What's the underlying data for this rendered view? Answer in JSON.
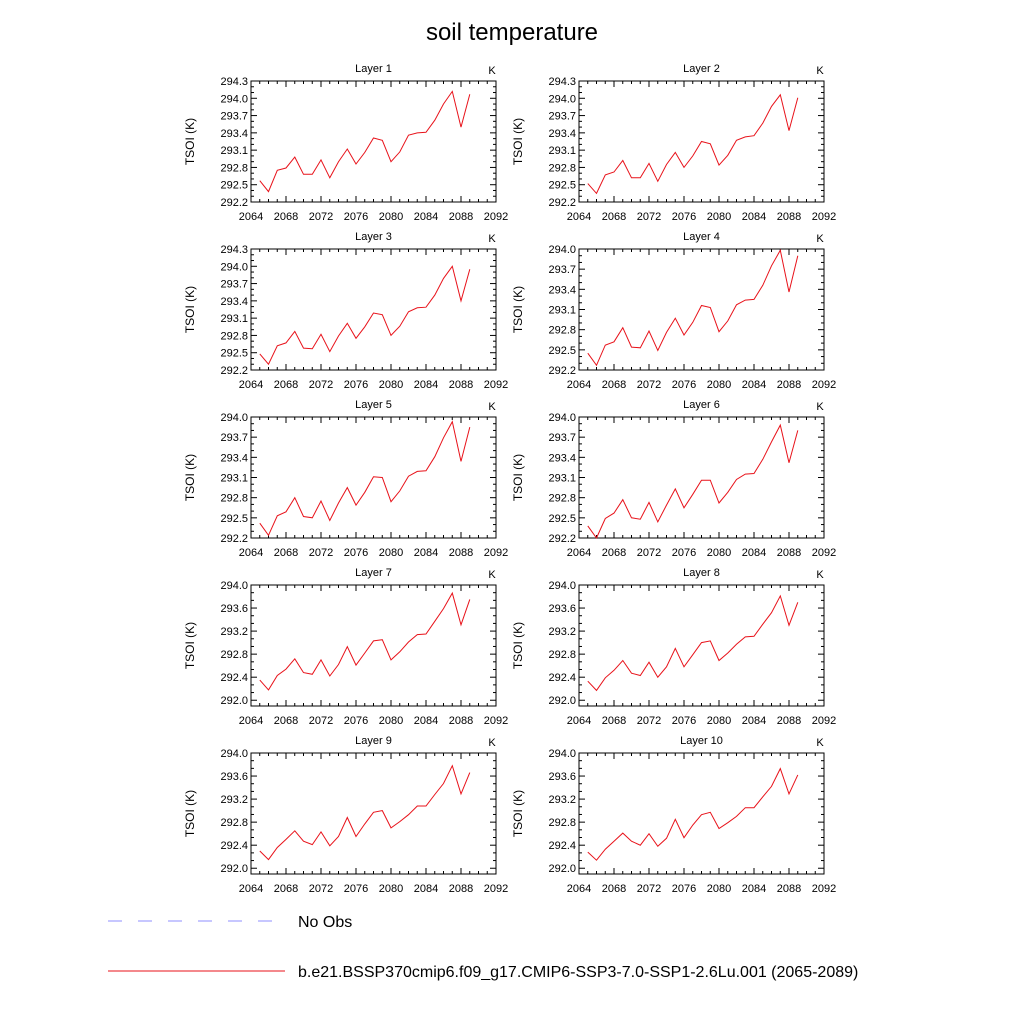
{
  "title": "soil temperature",
  "legend": [
    {
      "label": "No Obs",
      "color": "#8f8fff",
      "dash": "dashed"
    },
    {
      "label": "b.e21.BSSP370cmip6.f09_g17.CMIP6-SSP3-7.0-SSP1-2.6Lu.001 (2065-2089)",
      "color": "#e8121a",
      "dash": "solid"
    }
  ],
  "chart_data": [
    {
      "type": "line",
      "title": "Layer 1",
      "ylabel": "TSOI  (K)",
      "units": "K",
      "xlim": [
        2064,
        2092
      ],
      "ylim": [
        292.2,
        294.3
      ],
      "xticks": [
        "2064",
        "2068",
        "2072",
        "2076",
        "2080",
        "2084",
        "2088",
        "2092"
      ],
      "yticks": [
        "292.2",
        "292.5",
        "292.8",
        "293.1",
        "293.4",
        "293.7",
        "294.0",
        "294.3"
      ],
      "series": [
        {
          "color": "#e8121a",
          "x": [
            2065,
            2066,
            2067,
            2068,
            2069,
            2070,
            2071,
            2072,
            2073,
            2074,
            2075,
            2076,
            2077,
            2078,
            2079,
            2080,
            2081,
            2082,
            2083,
            2084,
            2085,
            2086,
            2087,
            2088,
            2089
          ],
          "y": [
            292.57,
            292.38,
            292.75,
            292.79,
            292.98,
            292.68,
            292.68,
            292.93,
            292.62,
            292.9,
            293.12,
            292.86,
            293.06,
            293.31,
            293.27,
            292.9,
            293.07,
            293.36,
            293.4,
            293.41,
            293.62,
            293.9,
            294.12,
            293.5,
            294.07
          ]
        }
      ]
    },
    {
      "type": "line",
      "title": "Layer 2",
      "ylabel": "TSOI  (K)",
      "units": "K",
      "xlim": [
        2064,
        2092
      ],
      "ylim": [
        292.2,
        294.3
      ],
      "xticks": [
        "2064",
        "2068",
        "2072",
        "2076",
        "2080",
        "2084",
        "2088",
        "2092"
      ],
      "yticks": [
        "292.2",
        "292.5",
        "292.8",
        "293.1",
        "293.4",
        "293.7",
        "294.0",
        "294.3"
      ],
      "series": [
        {
          "color": "#e8121a",
          "x": [
            2065,
            2066,
            2067,
            2068,
            2069,
            2070,
            2071,
            2072,
            2073,
            2074,
            2075,
            2076,
            2077,
            2078,
            2079,
            2080,
            2081,
            2082,
            2083,
            2084,
            2085,
            2086,
            2087,
            2088,
            2089
          ],
          "y": [
            292.52,
            292.35,
            292.67,
            292.72,
            292.92,
            292.62,
            292.62,
            292.87,
            292.56,
            292.85,
            293.06,
            292.8,
            293.0,
            293.25,
            293.21,
            292.84,
            293.01,
            293.27,
            293.33,
            293.35,
            293.57,
            293.86,
            294.06,
            293.44,
            294.01
          ]
        }
      ]
    },
    {
      "type": "line",
      "title": "Layer 3",
      "ylabel": "TSOI  (K)",
      "units": "K",
      "xlim": [
        2064,
        2092
      ],
      "ylim": [
        292.2,
        294.3
      ],
      "xticks": [
        "2064",
        "2068",
        "2072",
        "2076",
        "2080",
        "2084",
        "2088",
        "2092"
      ],
      "yticks": [
        "292.2",
        "292.5",
        "292.8",
        "293.1",
        "293.4",
        "293.7",
        "294.0",
        "294.3"
      ],
      "series": [
        {
          "color": "#e8121a",
          "x": [
            2065,
            2066,
            2067,
            2068,
            2069,
            2070,
            2071,
            2072,
            2073,
            2074,
            2075,
            2076,
            2077,
            2078,
            2079,
            2080,
            2081,
            2082,
            2083,
            2084,
            2085,
            2086,
            2087,
            2088,
            2089
          ],
          "y": [
            292.48,
            292.3,
            292.62,
            292.67,
            292.87,
            292.58,
            292.57,
            292.82,
            292.52,
            292.79,
            293.01,
            292.75,
            292.95,
            293.19,
            293.16,
            292.8,
            292.96,
            293.21,
            293.28,
            293.29,
            293.5,
            293.79,
            294.0,
            293.4,
            293.95
          ]
        }
      ]
    },
    {
      "type": "line",
      "title": "Layer 4",
      "ylabel": "TSOI  (K)",
      "units": "K",
      "xlim": [
        2064,
        2092
      ],
      "ylim": [
        292.2,
        294.0
      ],
      "xticks": [
        "2064",
        "2068",
        "2072",
        "2076",
        "2080",
        "2084",
        "2088",
        "2092"
      ],
      "yticks": [
        "292.2",
        "292.5",
        "292.8",
        "293.1",
        "293.4",
        "293.7",
        "294.0"
      ],
      "series": [
        {
          "color": "#e8121a",
          "x": [
            2065,
            2066,
            2067,
            2068,
            2069,
            2070,
            2071,
            2072,
            2073,
            2074,
            2075,
            2076,
            2077,
            2078,
            2079,
            2080,
            2081,
            2082,
            2083,
            2084,
            2085,
            2086,
            2087,
            2088,
            2089
          ],
          "y": [
            292.45,
            292.27,
            292.57,
            292.62,
            292.83,
            292.54,
            292.53,
            292.78,
            292.49,
            292.76,
            292.97,
            292.72,
            292.91,
            293.16,
            293.13,
            292.77,
            292.93,
            293.17,
            293.24,
            293.25,
            293.46,
            293.75,
            293.98,
            293.36,
            293.9
          ]
        }
      ]
    },
    {
      "type": "line",
      "title": "Layer 5",
      "ylabel": "TSOI  (K)",
      "units": "K",
      "xlim": [
        2064,
        2092
      ],
      "ylim": [
        292.2,
        294.0
      ],
      "xticks": [
        "2064",
        "2068",
        "2072",
        "2076",
        "2080",
        "2084",
        "2088",
        "2092"
      ],
      "yticks": [
        "292.2",
        "292.5",
        "292.8",
        "293.1",
        "293.4",
        "293.7",
        "294.0"
      ],
      "series": [
        {
          "color": "#e8121a",
          "x": [
            2065,
            2066,
            2067,
            2068,
            2069,
            2070,
            2071,
            2072,
            2073,
            2074,
            2075,
            2076,
            2077,
            2078,
            2079,
            2080,
            2081,
            2082,
            2083,
            2084,
            2085,
            2086,
            2087,
            2088,
            2089
          ],
          "y": [
            292.42,
            292.24,
            292.53,
            292.59,
            292.8,
            292.52,
            292.5,
            292.75,
            292.46,
            292.72,
            292.95,
            292.69,
            292.88,
            293.11,
            293.1,
            292.74,
            292.9,
            293.12,
            293.19,
            293.2,
            293.41,
            293.69,
            293.93,
            293.34,
            293.85
          ]
        }
      ]
    },
    {
      "type": "line",
      "title": "Layer 6",
      "ylabel": "TSOI  (K)",
      "units": "K",
      "xlim": [
        2064,
        2092
      ],
      "ylim": [
        292.2,
        294.0
      ],
      "xticks": [
        "2064",
        "2068",
        "2072",
        "2076",
        "2080",
        "2084",
        "2088",
        "2092"
      ],
      "yticks": [
        "292.2",
        "292.5",
        "292.8",
        "293.1",
        "293.4",
        "293.7",
        "294.0"
      ],
      "series": [
        {
          "color": "#e8121a",
          "x": [
            2065,
            2066,
            2067,
            2068,
            2069,
            2070,
            2071,
            2072,
            2073,
            2074,
            2075,
            2076,
            2077,
            2078,
            2079,
            2080,
            2081,
            2082,
            2083,
            2084,
            2085,
            2086,
            2087,
            2088,
            2089
          ],
          "y": [
            292.38,
            292.2,
            292.49,
            292.57,
            292.77,
            292.5,
            292.48,
            292.73,
            292.44,
            292.69,
            292.93,
            292.65,
            292.85,
            293.06,
            293.06,
            292.72,
            292.88,
            293.07,
            293.15,
            293.16,
            293.37,
            293.63,
            293.88,
            293.32,
            293.8
          ]
        }
      ]
    },
    {
      "type": "line",
      "title": "Layer 7",
      "ylabel": "TSOI  (K)",
      "units": "K",
      "xlim": [
        2064,
        2092
      ],
      "ylim": [
        291.9,
        294.0
      ],
      "xticks": [
        "2064",
        "2068",
        "2072",
        "2076",
        "2080",
        "2084",
        "2088",
        "2092"
      ],
      "yticks": [
        "292.0",
        "292.4",
        "292.8",
        "293.2",
        "293.6",
        "294.0"
      ],
      "series": [
        {
          "color": "#e8121a",
          "x": [
            2065,
            2066,
            2067,
            2068,
            2069,
            2070,
            2071,
            2072,
            2073,
            2074,
            2075,
            2076,
            2077,
            2078,
            2079,
            2080,
            2081,
            2082,
            2083,
            2084,
            2085,
            2086,
            2087,
            2088,
            2089
          ],
          "y": [
            292.35,
            292.18,
            292.43,
            292.54,
            292.72,
            292.48,
            292.45,
            292.7,
            292.42,
            292.62,
            292.93,
            292.61,
            292.82,
            293.03,
            293.05,
            292.7,
            292.84,
            293.01,
            293.14,
            293.15,
            293.37,
            293.59,
            293.86,
            293.31,
            293.75
          ]
        }
      ]
    },
    {
      "type": "line",
      "title": "Layer 8",
      "ylabel": "TSOI  (K)",
      "units": "K",
      "xlim": [
        2064,
        2092
      ],
      "ylim": [
        291.9,
        294.0
      ],
      "xticks": [
        "2064",
        "2068",
        "2072",
        "2076",
        "2080",
        "2084",
        "2088",
        "2092"
      ],
      "yticks": [
        "292.0",
        "292.4",
        "292.8",
        "293.2",
        "293.6",
        "294.0"
      ],
      "series": [
        {
          "color": "#e8121a",
          "x": [
            2065,
            2066,
            2067,
            2068,
            2069,
            2070,
            2071,
            2072,
            2073,
            2074,
            2075,
            2076,
            2077,
            2078,
            2079,
            2080,
            2081,
            2082,
            2083,
            2084,
            2085,
            2086,
            2087,
            2088,
            2089
          ],
          "y": [
            292.33,
            292.17,
            292.39,
            292.52,
            292.69,
            292.47,
            292.43,
            292.66,
            292.4,
            292.58,
            292.9,
            292.58,
            292.79,
            293.0,
            293.03,
            292.69,
            292.82,
            292.97,
            293.1,
            293.11,
            293.32,
            293.52,
            293.81,
            293.3,
            293.7
          ]
        }
      ]
    },
    {
      "type": "line",
      "title": "Layer 9",
      "ylabel": "TSOI  (K)",
      "units": "K",
      "xlim": [
        2064,
        2092
      ],
      "ylim": [
        291.9,
        294.0
      ],
      "xticks": [
        "2064",
        "2068",
        "2072",
        "2076",
        "2080",
        "2084",
        "2088",
        "2092"
      ],
      "yticks": [
        "292.0",
        "292.4",
        "292.8",
        "293.2",
        "293.6",
        "294.0"
      ],
      "series": [
        {
          "color": "#e8121a",
          "x": [
            2065,
            2066,
            2067,
            2068,
            2069,
            2070,
            2071,
            2072,
            2073,
            2074,
            2075,
            2076,
            2077,
            2078,
            2079,
            2080,
            2081,
            2082,
            2083,
            2084,
            2085,
            2086,
            2087,
            2088,
            2089
          ],
          "y": [
            292.3,
            292.15,
            292.36,
            292.5,
            292.65,
            292.47,
            292.41,
            292.63,
            292.39,
            292.55,
            292.88,
            292.55,
            292.77,
            292.97,
            293.0,
            292.7,
            292.81,
            292.93,
            293.08,
            293.08,
            293.28,
            293.47,
            293.78,
            293.29,
            293.66
          ]
        }
      ]
    },
    {
      "type": "line",
      "title": "Layer 10",
      "ylabel": "TSOI  (K)",
      "units": "K",
      "xlim": [
        2064,
        2092
      ],
      "ylim": [
        291.9,
        294.0
      ],
      "xticks": [
        "2064",
        "2068",
        "2072",
        "2076",
        "2080",
        "2084",
        "2088",
        "2092"
      ],
      "yticks": [
        "292.0",
        "292.4",
        "292.8",
        "293.2",
        "293.6",
        "294.0"
      ],
      "series": [
        {
          "color": "#e8121a",
          "x": [
            2065,
            2066,
            2067,
            2068,
            2069,
            2070,
            2071,
            2072,
            2073,
            2074,
            2075,
            2076,
            2077,
            2078,
            2079,
            2080,
            2081,
            2082,
            2083,
            2084,
            2085,
            2086,
            2087,
            2088,
            2089
          ],
          "y": [
            292.28,
            292.14,
            292.33,
            292.47,
            292.61,
            292.47,
            292.4,
            292.6,
            292.38,
            292.52,
            292.85,
            292.53,
            292.75,
            292.93,
            292.97,
            292.69,
            292.79,
            292.9,
            293.05,
            293.05,
            293.24,
            293.42,
            293.73,
            293.29,
            293.62
          ]
        }
      ]
    }
  ]
}
